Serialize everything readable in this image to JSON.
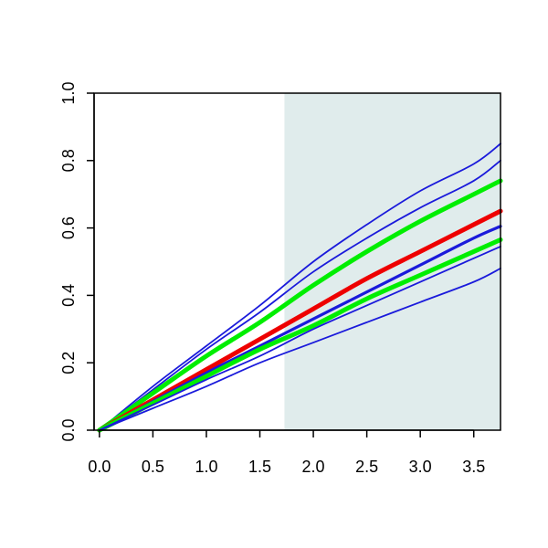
{
  "chart_data": {
    "type": "line",
    "title": "",
    "xlabel": "",
    "ylabel": "",
    "xlim": [
      -0.05,
      3.75
    ],
    "ylim": [
      0.0,
      1.0
    ],
    "x_ticks": [
      0.0,
      0.5,
      1.0,
      1.5,
      2.0,
      2.5,
      3.0,
      3.5
    ],
    "x_tick_labels": [
      "0.0",
      "0.5",
      "1.0",
      "1.5",
      "2.0",
      "2.5",
      "3.0",
      "3.5"
    ],
    "y_ticks": [
      0.0,
      0.2,
      0.4,
      0.6,
      0.8,
      1.0
    ],
    "y_tick_labels": [
      "0.0",
      "0.2",
      "0.4",
      "0.6",
      "0.8",
      "1.0"
    ],
    "grid": false,
    "legend": "none",
    "shaded_region": {
      "x_from": 1.73,
      "x_to": 3.75,
      "color": "#e0ecec"
    },
    "x": [
      0.0,
      0.5,
      1.0,
      1.5,
      2.0,
      2.5,
      3.0,
      3.5,
      3.75
    ],
    "series": [
      {
        "color": "#1a1adb",
        "width": "thin",
        "values": [
          0.0,
          0.13,
          0.25,
          0.37,
          0.5,
          0.61,
          0.71,
          0.79,
          0.85
        ]
      },
      {
        "color": "#1a1adb",
        "width": "thin",
        "values": [
          0.0,
          0.12,
          0.24,
          0.35,
          0.47,
          0.57,
          0.66,
          0.74,
          0.8
        ]
      },
      {
        "color": "#00ee00",
        "width": "thick",
        "values": [
          0.0,
          0.11,
          0.22,
          0.32,
          0.43,
          0.53,
          0.62,
          0.7,
          0.74
        ]
      },
      {
        "color": "#ee0000",
        "width": "thick",
        "values": [
          0.0,
          0.09,
          0.18,
          0.27,
          0.36,
          0.45,
          0.53,
          0.61,
          0.65
        ]
      },
      {
        "color": "#1a1adb",
        "width": "medium",
        "values": [
          0.0,
          0.085,
          0.17,
          0.25,
          0.33,
          0.41,
          0.49,
          0.57,
          0.605
        ]
      },
      {
        "color": "#00ee00",
        "width": "thick",
        "values": [
          0.0,
          0.08,
          0.16,
          0.24,
          0.31,
          0.39,
          0.46,
          0.53,
          0.565
        ]
      },
      {
        "color": "#1a1adb",
        "width": "thin",
        "values": [
          0.0,
          0.075,
          0.15,
          0.22,
          0.3,
          0.37,
          0.44,
          0.51,
          0.545
        ]
      },
      {
        "color": "#1a1adb",
        "width": "thin",
        "values": [
          0.0,
          0.065,
          0.13,
          0.2,
          0.26,
          0.32,
          0.38,
          0.44,
          0.48
        ]
      }
    ]
  }
}
